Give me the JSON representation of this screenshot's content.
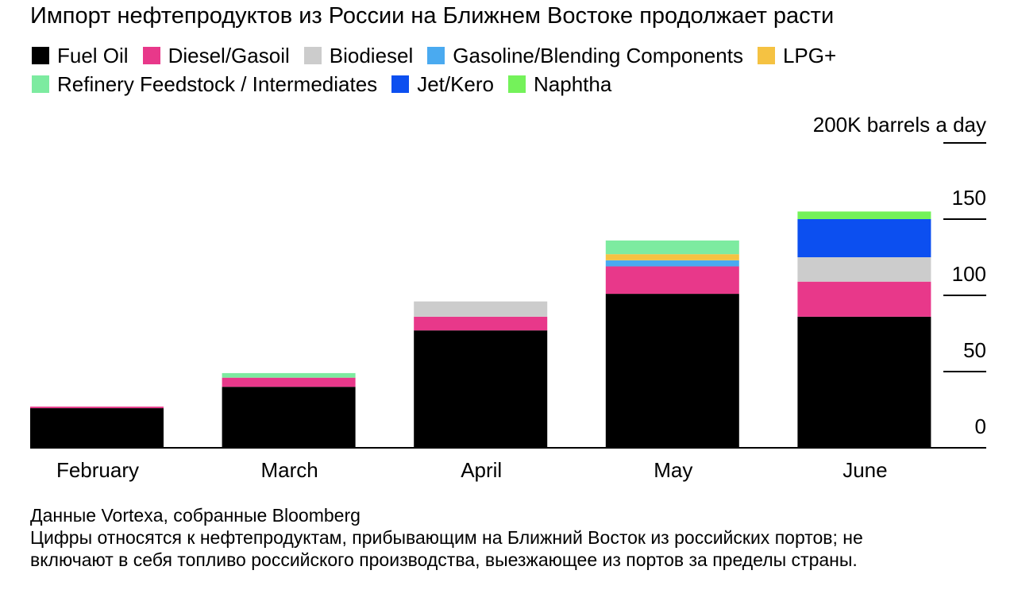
{
  "title": "Импорт нефтепродуктов из России на Ближнем Востоке продолжает расти",
  "legend_rows": [
    [
      "Fuel Oil",
      "Diesel/Gasoil",
      "Biodiesel",
      "Gasoline/Blending Components",
      "LPG+"
    ],
    [
      "Refinery Feedstock / Intermediates",
      "Jet/Kero",
      "Naphtha"
    ]
  ],
  "colors": {
    "Fuel Oil": "#000000",
    "Diesel/Gasoil": "#e8388a",
    "Biodiesel": "#cccccc",
    "Gasoline/Blending Components": "#4aaaf0",
    "LPG+": "#f5c242",
    "Refinery Feedstock / Intermediates": "#7deba0",
    "Jet/Kero": "#0c4ff0",
    "Naphtha": "#74f25a"
  },
  "chart_data": {
    "type": "bar",
    "stacked": true,
    "unit_label": "200K barrels a day",
    "categories": [
      "February",
      "March",
      "April",
      "May",
      "June"
    ],
    "ylim": [
      0,
      200
    ],
    "yticks": [
      0,
      50,
      100,
      150
    ],
    "ytick_labels": [
      "0",
      "50",
      "100",
      "150"
    ],
    "series": [
      {
        "name": "Fuel Oil",
        "values": [
          26,
          40,
          77,
          101,
          86
        ]
      },
      {
        "name": "Diesel/Gasoil",
        "values": [
          1,
          6,
          9,
          18,
          23
        ]
      },
      {
        "name": "Biodiesel",
        "values": [
          0,
          0,
          10,
          0,
          16
        ]
      },
      {
        "name": "Gasoline/Blending Components",
        "values": [
          0,
          0,
          0,
          4,
          0
        ]
      },
      {
        "name": "LPG+",
        "values": [
          0,
          0,
          0,
          4,
          0
        ]
      },
      {
        "name": "Refinery Feedstock / Intermediates",
        "values": [
          0,
          3,
          0,
          9,
          0
        ]
      },
      {
        "name": "Jet/Kero",
        "values": [
          0,
          0,
          0,
          0,
          25
        ]
      },
      {
        "name": "Naphtha",
        "values": [
          0,
          0,
          0,
          0,
          5
        ]
      }
    ]
  },
  "footnotes": {
    "source": "Данные Vortexa, собранные Bloomberg",
    "note_line1": "Цифры относятся к нефтепродуктам, прибывающим на Ближний Восток из российских портов; не",
    "note_line2": "включают в себя топливо российского производства, выезжающее из портов за пределы страны."
  }
}
